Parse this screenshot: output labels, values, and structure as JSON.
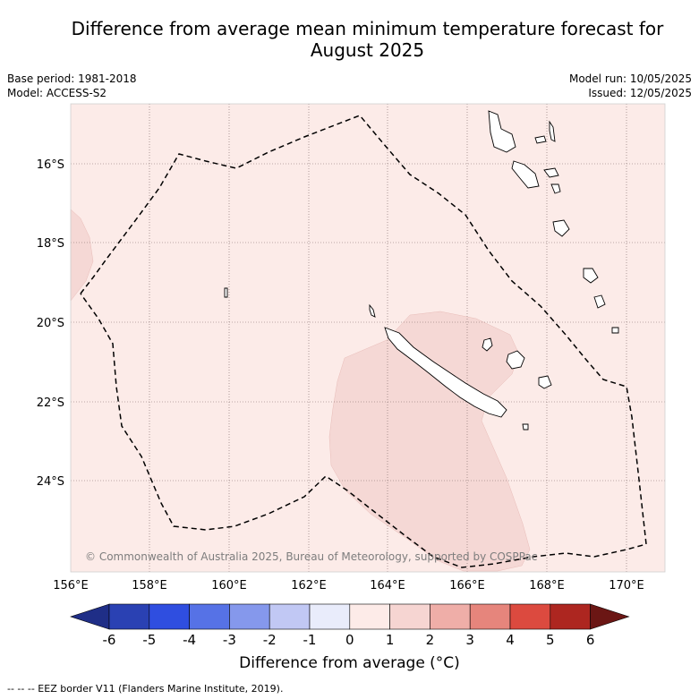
{
  "title_line1": "Difference from average mean minimum temperature forecast for",
  "title_line2": "August 2025",
  "base_period": "Base period: 1981-2018",
  "model": "Model: ACCESS-S2",
  "model_run": "Model run: 10/05/2025",
  "issued": "Issued: 12/05/2025",
  "copyright": "© Commonwealth of Australia 2025, Bureau of Meteorology, supported by COSPPac",
  "x_ticks": [
    "156°E",
    "158°E",
    "160°E",
    "162°E",
    "164°E",
    "166°E",
    "168°E",
    "170°E"
  ],
  "y_ticks": [
    "16°S",
    "18°S",
    "20°S",
    "22°S",
    "24°S"
  ],
  "colorbar": {
    "ticks": [
      "-6",
      "-5",
      "-4",
      "-3",
      "-2",
      "-1",
      "0",
      "1",
      "2",
      "3",
      "4",
      "5",
      "6"
    ],
    "colors": [
      "#1f2e87",
      "#2a41b3",
      "#2f4ee0",
      "#5672e6",
      "#8598ec",
      "#c1c8f4",
      "#e9ecfb",
      "#fdebe8",
      "#f6d5d2",
      "#efaea8",
      "#e6857c",
      "#dc4a3f",
      "#ad2620",
      "#6b1614"
    ],
    "label": "Difference from average (°C)"
  },
  "map_colors": {
    "background": "#fcebe8",
    "warm_anomaly": "#f5d8d5"
  },
  "footer": "-- -- -- EEZ border V11 (Flanders Marine Institute, 2019)."
}
